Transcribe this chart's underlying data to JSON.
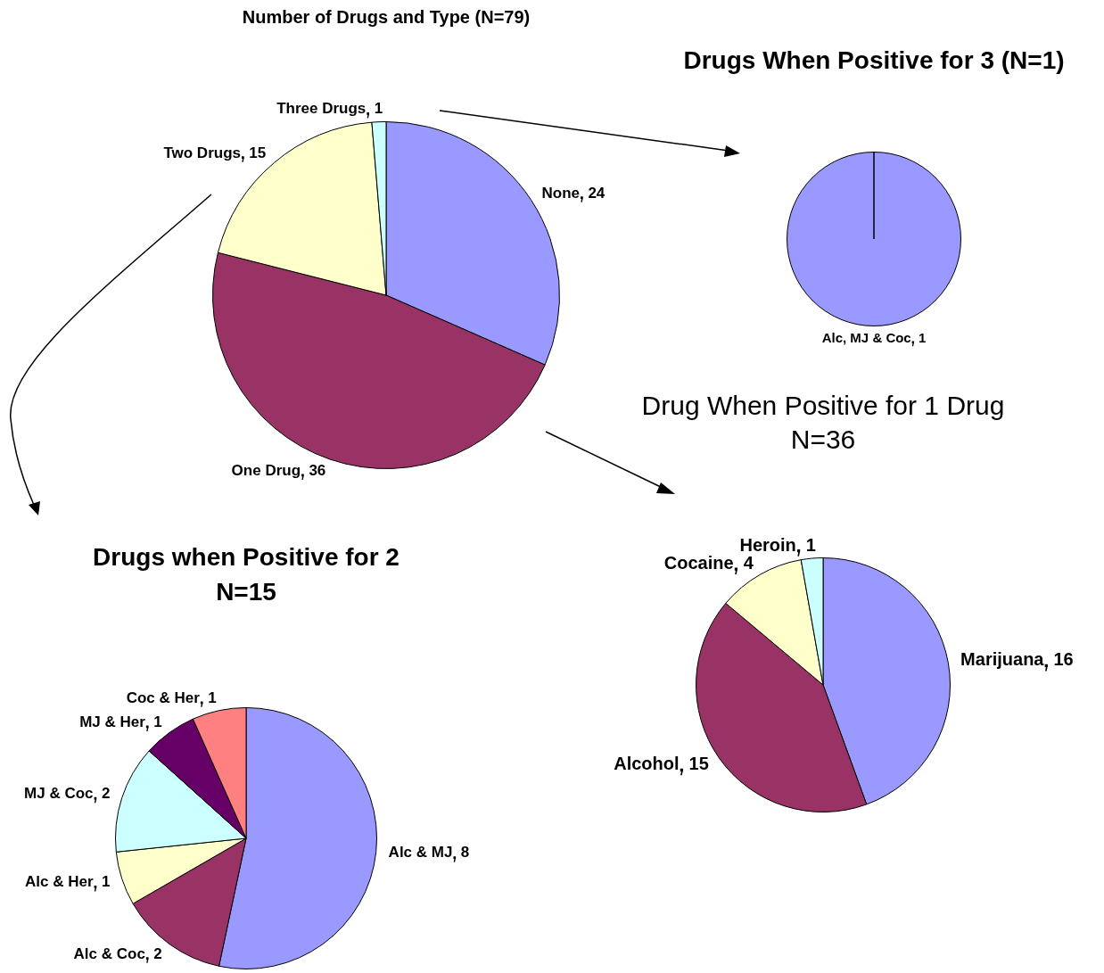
{
  "chart_data": [
    {
      "type": "pie",
      "title": "Number of Drugs and Type (N=79)",
      "categories": [
        "None",
        "One Drug",
        "Two Drugs",
        "Three Drugs"
      ],
      "values": [
        24,
        36,
        15,
        1
      ],
      "colors": [
        "#9999ff",
        "#993366",
        "#ffffcc",
        "#ccffff"
      ],
      "data_labels": true
    },
    {
      "type": "pie",
      "title": "Drugs When Positive for 3 (N=1)",
      "categories": [
        "Alc, MJ & Coc"
      ],
      "values": [
        1
      ],
      "colors": [
        "#9999ff"
      ],
      "data_labels": true
    },
    {
      "type": "pie",
      "title": "Drug When Positive for 1 Drug",
      "subtitle": "N=36",
      "categories": [
        "Marijuana",
        "Alcohol",
        "Cocaine",
        "Heroin"
      ],
      "values": [
        16,
        15,
        4,
        1
      ],
      "colors": [
        "#9999ff",
        "#993366",
        "#ffffcc",
        "#ccffff"
      ],
      "data_labels": true
    },
    {
      "type": "pie",
      "title": "Drugs when Positive for 2",
      "subtitle": "N=15",
      "categories": [
        "Alc & MJ",
        "Alc & Coc",
        "Alc & Her",
        "MJ & Coc",
        "MJ & Her",
        "Coc & Her"
      ],
      "values": [
        8,
        2,
        1,
        2,
        1,
        1
      ],
      "colors": [
        "#9999ff",
        "#993366",
        "#ffffcc",
        "#ccffff",
        "#660066",
        "#ff8080"
      ],
      "data_labels": true
    }
  ]
}
